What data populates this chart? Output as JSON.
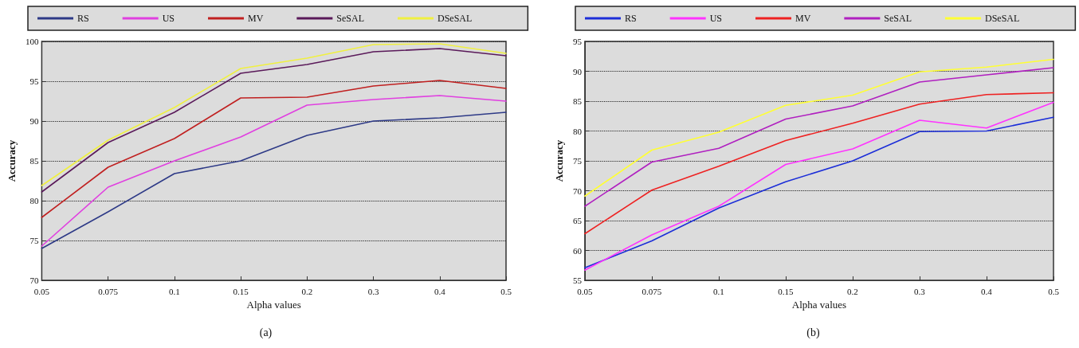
{
  "chart_data": [
    {
      "type": "line",
      "xlabel": "Alpha values",
      "ylabel": "Accuracy",
      "categories": [
        "0.05",
        "0.075",
        "0.1",
        "0.15",
        "0.2",
        "0.3",
        "0.4",
        "0.5"
      ],
      "ylim": [
        70,
        100
      ],
      "yticks": [
        70,
        75,
        80,
        85,
        90,
        95,
        100
      ],
      "grid": "y",
      "legend": "top",
      "marker": "none",
      "line_style": "solid",
      "annotations": [
        "(a)"
      ],
      "series": [
        {
          "name": "RS",
          "color": "#2e3a87",
          "values": [
            74,
            78.6,
            83.4,
            85,
            88.2,
            90,
            90.4,
            91.1
          ]
        },
        {
          "name": "US",
          "color": "#e040e0",
          "values": [
            74.3,
            81.7,
            85,
            88,
            92,
            92.7,
            93.2,
            92.5
          ]
        },
        {
          "name": "MV",
          "color": "#c02020",
          "values": [
            77.9,
            84.2,
            87.8,
            92.9,
            93,
            94.4,
            95.1,
            94.1
          ]
        },
        {
          "name": "SeSAL",
          "color": "#5a1a5a",
          "values": [
            81.1,
            87.3,
            91.1,
            96,
            97.1,
            98.7,
            99.1,
            98.2
          ]
        },
        {
          "name": "DSeSAL",
          "color": "#f0f040",
          "values": [
            81.9,
            87.6,
            91.7,
            96.6,
            97.9,
            99.6,
            99.7,
            98.5
          ]
        }
      ]
    },
    {
      "type": "line",
      "xlabel": "Alpha values",
      "ylabel": "Accuracy",
      "categories": [
        "0.05",
        "0.075",
        "0.1",
        "0.15",
        "0.2",
        "0.3",
        "0.4",
        "0.5"
      ],
      "ylim": [
        55,
        95
      ],
      "yticks": [
        55,
        60,
        65,
        70,
        75,
        80,
        85,
        90,
        95
      ],
      "grid": "y",
      "legend": "top",
      "marker": "none",
      "line_style": "solid",
      "annotations": [
        "(b)"
      ],
      "series": [
        {
          "name": "RS",
          "color": "#1c2ed8",
          "values": [
            57.1,
            61.6,
            67.1,
            71.5,
            75,
            79.9,
            80,
            82.3
          ]
        },
        {
          "name": "US",
          "color": "#ff33ff",
          "values": [
            56.7,
            62.6,
            67.4,
            74.4,
            77,
            81.8,
            80.5,
            84.8
          ]
        },
        {
          "name": "MV",
          "color": "#ee2222",
          "values": [
            62.8,
            70.1,
            74.1,
            78.4,
            81.3,
            84.5,
            86.1,
            86.4
          ]
        },
        {
          "name": "SeSAL",
          "color": "#b020c0",
          "values": [
            67.4,
            74.8,
            77.1,
            82,
            84.2,
            88.2,
            89.4,
            90.6
          ]
        },
        {
          "name": "DSeSAL",
          "color": "#ffff33",
          "values": [
            69.1,
            76.8,
            79.8,
            84.3,
            86,
            89.9,
            90.7,
            92
          ]
        }
      ]
    }
  ]
}
